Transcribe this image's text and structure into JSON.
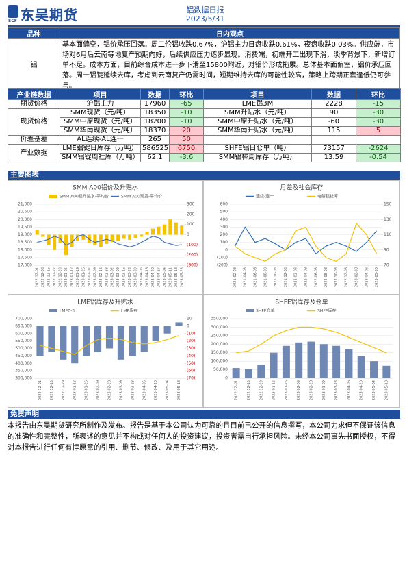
{
  "header": {
    "logo": "东吴期货",
    "logo_sub": "SCF",
    "title": "铝数据日报",
    "date": "2023/5/31"
  },
  "opinion": {
    "header": [
      "品种",
      "日内观点"
    ],
    "variety": "铝",
    "text": "基本面偏空，铝价承压回落。周二伦铝收跌0.67%，沪铝主力日盘收跌0.61%，夜盘收跌0.03%。供应端，市场对6月后云南等地复产预期向好，后续供应压力逐步显现。消费端，初端开工出现下滑，淡季背景下，新增订单不足。成本方面，目前综合成本进一步下滑至15800附近，对铝价形成拖累。总体基本面偏空，铝价承压回落。周一铝锭延续去库，考虑到云南复产仍需时间，短期维持去库的可能性较高，策略上跨期正套逢低仍可参与。"
  },
  "table": {
    "header": [
      "产业链数据",
      "项目",
      "数据",
      "环比",
      "项目",
      "数据",
      "环比"
    ],
    "groups": [
      {
        "name": "期货价格",
        "rows": [
          [
            "沪铝主力",
            17960,
            -65,
            "LME铝3M",
            2228,
            -15
          ]
        ]
      },
      {
        "name": "现货价格",
        "rows": [
          [
            "SMM现货（元/吨）",
            18350,
            -10,
            "SMM升贴水（元/吨）",
            90,
            -30
          ],
          [
            "SMM中原现货（元/吨）",
            18200,
            -10,
            "SMM中原升贴水（元/吨）",
            -60,
            -30
          ],
          [
            "SMM华南现货（元/吨）",
            18370,
            20,
            "SMM华南升贴水（元/吨）",
            115,
            5
          ]
        ]
      },
      {
        "name": "价差基差",
        "rows": [
          [
            "AL连续-AL连一",
            265,
            50
          ]
        ]
      },
      {
        "name": "产业数据",
        "rows": [
          [
            "LME铝锭日库存（万吨）",
            586525,
            6750,
            "SHFE铝日仓单（吨）",
            73157,
            -2624
          ],
          [
            "SMM铝锭周社库（万吨）",
            62.1,
            -3.6,
            "SMM铝棒周库存（万吨）",
            13.59,
            -0.54
          ]
        ]
      }
    ]
  },
  "charts_header": "主要图表",
  "chart_data": [
    {
      "type": "combo",
      "title": "SMM A00铝价及升贴水",
      "categories": [
        "2022-12-01",
        "2022-12-08",
        "2022-12-15",
        "2022-12-22",
        "2022-12-29",
        "2023-01-05",
        "2023-01-12",
        "2023-01-19",
        "2023-01-26",
        "2023-02-02",
        "2023-02-09",
        "2023-02-16",
        "2023-02-23",
        "2023-03-02",
        "2023-03-09",
        "2023-03-16",
        "2023-03-23",
        "2023-03-30",
        "2023-04-06",
        "2023-04-13",
        "2023-04-20",
        "2023-04-27",
        "2023-05-04",
        "2023-05-11",
        "2023-05-18",
        "2023-05-25"
      ],
      "series": [
        {
          "name": "SMM A00铝升贴水-平均价",
          "type": "bar",
          "axis": "y2",
          "color": "#f5c200",
          "values": [
            50,
            -20,
            -100,
            -150,
            -80,
            -200,
            -120,
            -60,
            -50,
            -80,
            -100,
            -120,
            -90,
            -70,
            -60,
            -40,
            -50,
            -30,
            -20,
            30,
            60,
            80,
            100,
            150,
            120,
            90
          ]
        },
        {
          "name": "SMM A00现货-平均价",
          "type": "line",
          "color": "#4472c4",
          "values": [
            18500,
            18600,
            18700,
            18900,
            18750,
            18300,
            18500,
            18900,
            19000,
            18700,
            18500,
            18600,
            18700,
            18600,
            18400,
            18300,
            18200,
            18300,
            18500,
            18700,
            18900,
            18800,
            18500,
            18400,
            18300,
            18350
          ]
        }
      ],
      "ylim": [
        17000,
        21000
      ],
      "yticks": [
        {
          "value": 17000,
          "label": "17,000"
        },
        {
          "value": 17500,
          "label": "17,500"
        },
        {
          "value": 18000,
          "label": "18,000"
        },
        {
          "value": 18500,
          "label": "18,500"
        },
        {
          "value": 19000,
          "label": "19,000"
        },
        {
          "value": 19500,
          "label": "19,500"
        },
        {
          "value": 20000,
          "label": "20,000"
        },
        {
          "value": 20500,
          "label": "20,500"
        },
        {
          "value": 21000,
          "label": "21,000"
        }
      ],
      "y2lim": [
        -300,
        300
      ],
      "y2ticks": [
        {
          "value": -300,
          "label": "(300)"
        },
        {
          "value": -200,
          "label": "(200)"
        },
        {
          "value": -100,
          "label": "(100)"
        },
        0,
        100,
        200,
        300
      ],
      "grid": true
    },
    {
      "type": "combo",
      "title": "月差及社会库存",
      "categories": [
        "2021-02-08",
        "2021-04-08",
        "2021-06-08",
        "2021-08-08",
        "2021-10-08",
        "2021-12-08",
        "2022-02-08",
        "2022-04-08",
        "2022-06-08",
        "2022-08-08",
        "2022-10-08",
        "2022-12-08",
        "2023-02-08",
        "2023-04-08",
        "2023-05-30"
      ],
      "series": [
        {
          "name": "连续-连一",
          "type": "line",
          "color": "#2e6db4",
          "values": [
            50,
            300,
            100,
            150,
            80,
            0,
            100,
            150,
            -50,
            50,
            100,
            50,
            -20,
            100,
            250
          ]
        },
        {
          "name": "电解铝社库",
          "type": "line",
          "axis": "y2",
          "color": "#f5c200",
          "values": [
            95,
            85,
            80,
            75,
            85,
            90,
            115,
            120,
            95,
            80,
            75,
            85,
            125,
            110,
            85
          ]
        }
      ],
      "ylim": [
        -200,
        600
      ],
      "yticks": [
        {
          "value": -200,
          "label": "(200)"
        },
        {
          "value": -100,
          "label": "(100)"
        },
        0,
        100,
        200,
        300,
        400,
        500,
        600
      ],
      "y2lim": [
        70,
        150
      ],
      "y2ticks": [
        70,
        90,
        110,
        130,
        150
      ],
      "grid": true
    },
    {
      "type": "combo",
      "title": "LME铝库存及升贴水",
      "categories": [
        "2022-12-01",
        "2022-12-15",
        "2022-12-29",
        "2023-01-12",
        "2023-01-26",
        "2023-02-09",
        "2023-02-23",
        "2023-03-09",
        "2023-03-23",
        "2023-04-06",
        "2023-04-20",
        "2023-05-04",
        "2023-05-18"
      ],
      "series": [
        {
          "name": "LME0-3",
          "type": "bar",
          "axis": "y2",
          "color": "#6f87b3",
          "values": [
            -40,
            -35,
            -45,
            -50,
            -40,
            -35,
            -30,
            -45,
            -40,
            -35,
            -20,
            -10,
            5
          ]
        },
        {
          "name": "LME库存",
          "type": "line",
          "color": "#f5c200",
          "values": [
            520000,
            500000,
            480000,
            460000,
            520000,
            560000,
            570000,
            560000,
            540000,
            530000,
            540000,
            560000,
            586525
          ]
        }
      ],
      "ylim": [
        300000,
        700000
      ],
      "yticks": [
        {
          "value": 300000,
          "label": "300,000"
        },
        {
          "value": 350000,
          "label": "350,000"
        },
        {
          "value": 400000,
          "label": "400,000"
        },
        {
          "value": 450000,
          "label": "450,000"
        },
        {
          "value": 500000,
          "label": "500,000"
        },
        {
          "value": 550000,
          "label": "550,000"
        },
        {
          "value": 600000,
          "label": "600,000"
        },
        {
          "value": 650000,
          "label": "650,000"
        },
        {
          "value": 700000,
          "label": "700,000"
        }
      ],
      "y2lim": [
        -70,
        10
      ],
      "y2ticks": [
        {
          "value": -70,
          "label": "(70)"
        },
        {
          "value": -60,
          "label": "(60)"
        },
        {
          "value": -50,
          "label": "(50)"
        },
        {
          "value": -40,
          "label": "(40)"
        },
        {
          "value": -30,
          "label": "(30)"
        },
        {
          "value": -20,
          "label": "(20)"
        },
        {
          "value": -10,
          "label": "(10)"
        },
        0,
        10
      ],
      "grid": false
    },
    {
      "type": "combo",
      "title": "SHFE铝库存及仓单",
      "categories": [
        "2022-12-01",
        "2022-12-15",
        "2022-12-29",
        "2023-01-12",
        "2023-01-26",
        "2023-02-09",
        "2023-02-23",
        "2023-03-09",
        "2023-03-23",
        "2023-04-06",
        "2023-04-20",
        "2023-05-04",
        "2023-05-18"
      ],
      "series": [
        {
          "name": "SHFE仓单",
          "type": "bar",
          "color": "#6f87b3",
          "values": [
            60000,
            55000,
            80000,
            150000,
            190000,
            210000,
            215000,
            200000,
            190000,
            170000,
            130000,
            100000,
            73157
          ]
        },
        {
          "name": "SHFE库存",
          "type": "line",
          "color": "#f5c200",
          "values": [
            150000,
            160000,
            200000,
            250000,
            280000,
            300000,
            300000,
            290000,
            270000,
            240000,
            210000,
            180000,
            150000
          ]
        }
      ],
      "ylim": [
        0,
        350000
      ],
      "yticks": [
        0,
        {
          "value": 50000,
          "label": "50,000"
        },
        {
          "value": 100000,
          "label": "100,000"
        },
        {
          "value": 150000,
          "label": "150,000"
        },
        {
          "value": 200000,
          "label": "200,000"
        },
        {
          "value": 250000,
          "label": "250,000"
        },
        {
          "value": 300000,
          "label": "300,000"
        },
        {
          "value": 350000,
          "label": "350,000"
        }
      ],
      "grid": true
    }
  ],
  "disclaimer": {
    "title": "免责声明",
    "text": "本报告由东吴期货研究所制作及发布。报告是基于本公司认为可靠的且目前已公开的信息撰写，本公司力求但不保证该信息的准确性和完整性，所表述的意见并不构成对任何人的投资建议，投资者需自行承担风险。未经本公司事先书面授权，不得对本报告进行任何有悖原意的引用、删节、修改、及用于其它用途。"
  }
}
